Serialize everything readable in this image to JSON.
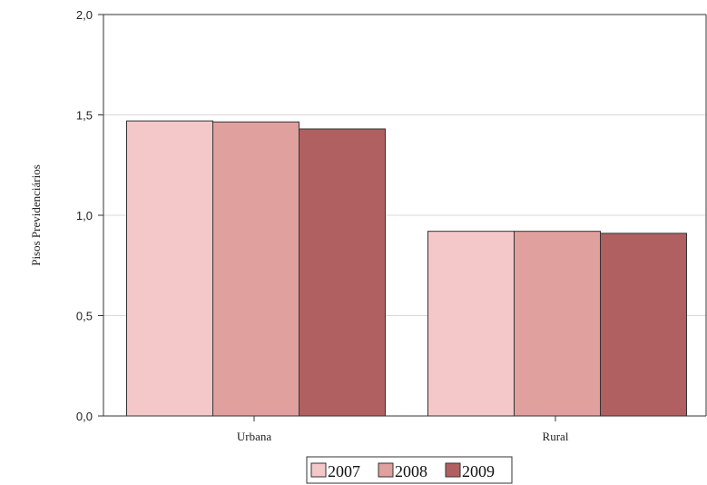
{
  "chart_data": {
    "type": "bar",
    "title": "",
    "xlabel": "",
    "ylabel": "Pisos Previdenciários",
    "categories": [
      "Urbana",
      "Rural"
    ],
    "series": [
      {
        "name": "2007",
        "values": [
          1.47,
          0.92
        ],
        "color": "#f4c8c8"
      },
      {
        "name": "2008",
        "values": [
          1.465,
          0.92
        ],
        "color": "#e0a09d"
      },
      {
        "name": "2009",
        "values": [
          1.43,
          0.91
        ],
        "color": "#b06060"
      }
    ],
    "ylim": [
      0,
      2.0
    ],
    "yticks": [
      {
        "value": 0,
        "label": "0,0"
      },
      {
        "value": 0.5,
        "label": "0,5"
      },
      {
        "value": 1.0,
        "label": "1,0"
      },
      {
        "value": 1.5,
        "label": "1,5"
      },
      {
        "value": 2.0,
        "label": "2,0"
      }
    ],
    "grid": true,
    "legend_position": "bottom-center"
  }
}
